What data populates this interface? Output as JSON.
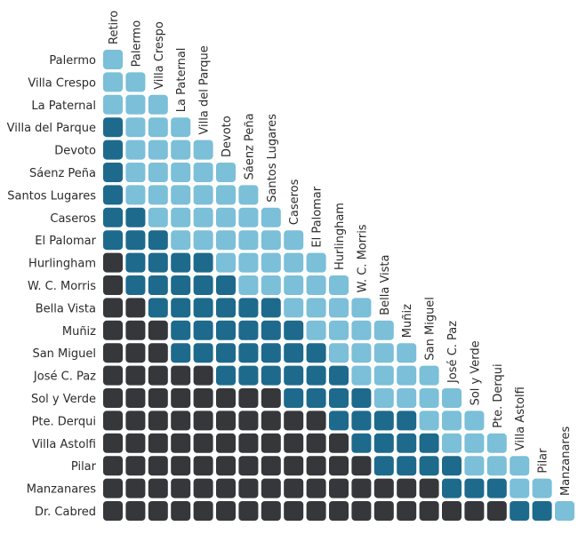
{
  "chart_data": {
    "type": "heatmap",
    "title": "",
    "row_labels": [
      "Palermo",
      "Villa Crespo",
      "La Paternal",
      "Villa del Parque",
      "Devoto",
      "Sáenz Peña",
      "Santos Lugares",
      "Caseros",
      "El Palomar",
      "Hurlingham",
      "W. C. Morris",
      "Bella Vista",
      "Muñiz",
      "San Miguel",
      "José C. Paz",
      "Sol y Verde",
      "Pte. Derqui",
      "Villa Astolfi",
      "Pilar",
      "Manzanares",
      "Dr. Cabred"
    ],
    "column_labels": [
      "Retiro",
      "Palermo",
      "Villa Crespo",
      "La Paternal",
      "Villa del Parque",
      "Devoto",
      "Sáenz Peña",
      "Santos Lugares",
      "Caseros",
      "El Palomar",
      "Hurlingham",
      "W. C. Morris",
      "Bella Vista",
      "Muñiz",
      "San Miguel",
      "José C. Paz",
      "Sol y Verde",
      "Pte. Derqui",
      "Villa Astolfi",
      "Pilar",
      "Manzanares"
    ],
    "levels": {
      "1": "#7bbfd8",
      "2": "#1d6a8c",
      "3": "#36373b"
    },
    "cells": [
      [
        1
      ],
      [
        1,
        1
      ],
      [
        1,
        1,
        1
      ],
      [
        2,
        1,
        1,
        1
      ],
      [
        2,
        1,
        1,
        1,
        1
      ],
      [
        2,
        1,
        1,
        1,
        1,
        1
      ],
      [
        2,
        1,
        1,
        1,
        1,
        1,
        1
      ],
      [
        2,
        2,
        1,
        1,
        1,
        1,
        1,
        1
      ],
      [
        2,
        2,
        2,
        1,
        1,
        1,
        1,
        1,
        1
      ],
      [
        3,
        2,
        2,
        2,
        2,
        1,
        1,
        1,
        1,
        1
      ],
      [
        3,
        2,
        2,
        2,
        2,
        2,
        1,
        1,
        1,
        1,
        1
      ],
      [
        3,
        3,
        2,
        2,
        2,
        2,
        2,
        2,
        1,
        1,
        1,
        1
      ],
      [
        3,
        3,
        3,
        2,
        2,
        2,
        2,
        2,
        2,
        1,
        1,
        1,
        1
      ],
      [
        3,
        3,
        3,
        2,
        2,
        2,
        2,
        2,
        2,
        2,
        1,
        1,
        1,
        1
      ],
      [
        3,
        3,
        3,
        3,
        3,
        2,
        2,
        2,
        2,
        2,
        2,
        1,
        1,
        1,
        1
      ],
      [
        3,
        3,
        3,
        3,
        3,
        3,
        3,
        3,
        2,
        2,
        2,
        2,
        1,
        1,
        1,
        1
      ],
      [
        3,
        3,
        3,
        3,
        3,
        3,
        3,
        3,
        3,
        3,
        2,
        2,
        2,
        2,
        1,
        1,
        1
      ],
      [
        3,
        3,
        3,
        3,
        3,
        3,
        3,
        3,
        3,
        3,
        3,
        2,
        2,
        2,
        2,
        1,
        1,
        1
      ],
      [
        3,
        3,
        3,
        3,
        3,
        3,
        3,
        3,
        3,
        3,
        3,
        3,
        2,
        2,
        2,
        2,
        1,
        1,
        1
      ],
      [
        3,
        3,
        3,
        3,
        3,
        3,
        3,
        3,
        3,
        3,
        3,
        3,
        3,
        3,
        3,
        2,
        2,
        2,
        1,
        1
      ],
      [
        3,
        3,
        3,
        3,
        3,
        3,
        3,
        3,
        3,
        3,
        3,
        3,
        3,
        3,
        3,
        3,
        3,
        3,
        2,
        2,
        1
      ]
    ]
  }
}
